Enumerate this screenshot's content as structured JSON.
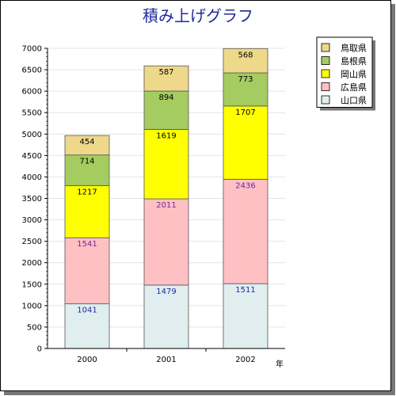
{
  "chart_data": {
    "type": "bar",
    "stacked": true,
    "title": "積み上げグラフ",
    "xlabel": "年",
    "ylabel": "",
    "ylim": [
      0,
      7000
    ],
    "yticks": [
      0,
      500,
      1000,
      1500,
      2000,
      2500,
      3000,
      3500,
      4000,
      4500,
      5000,
      5500,
      6000,
      6500,
      7000
    ],
    "grid": true,
    "legend_position": "top-right",
    "categories": [
      "2000",
      "2001",
      "2002"
    ],
    "series": [
      {
        "name": "山口県",
        "values": [
          1041,
          1479,
          1511
        ],
        "color": "#e0eef0",
        "label_color": "#1f2a9e"
      },
      {
        "name": "広島県",
        "values": [
          1541,
          2011,
          2436
        ],
        "color": "#ffc0c4",
        "label_color": "#7a1fa0"
      },
      {
        "name": "岡山県",
        "values": [
          1217,
          1619,
          1707
        ],
        "color": "#ffff00",
        "label_color": "#000000"
      },
      {
        "name": "島根県",
        "values": [
          714,
          894,
          773
        ],
        "color": "#a4cc60",
        "label_color": "#000000"
      },
      {
        "name": "鳥取県",
        "values": [
          454,
          587,
          568
        ],
        "color": "#eed88a",
        "label_color": "#000000"
      }
    ]
  }
}
